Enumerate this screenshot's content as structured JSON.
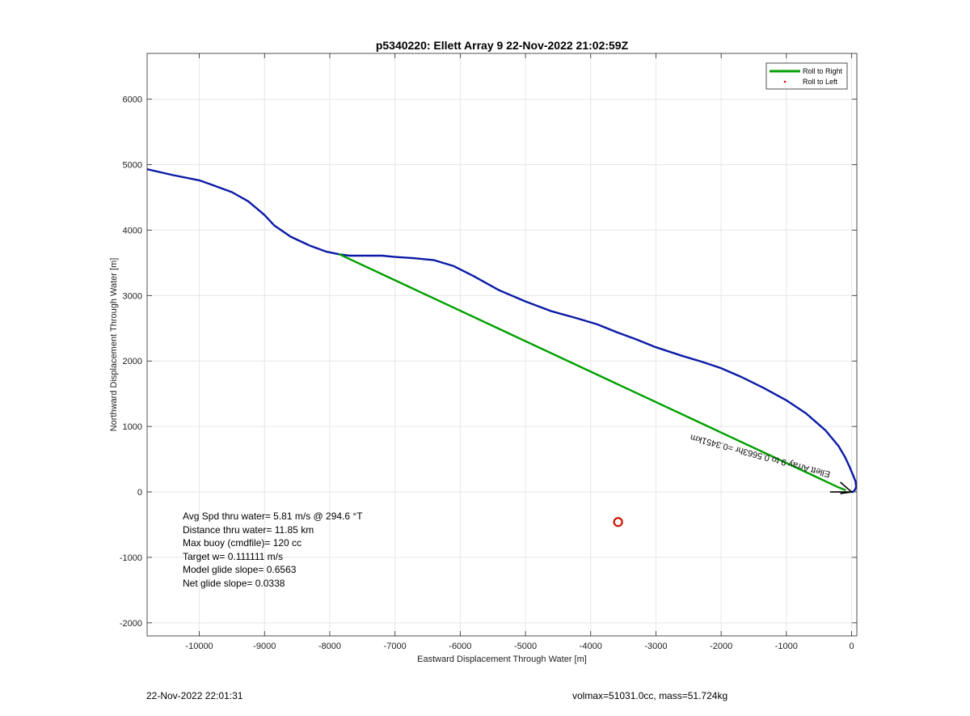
{
  "chart_data": {
    "type": "line",
    "title": "p5340220: Ellett Array 9 22-Nov-2022 21:02:59Z",
    "xlabel": "Eastward Displacement Through Water [m]",
    "ylabel": "Northward Displacement Through Water [m]",
    "xlim": [
      -10800,
      80
    ],
    "ylim": [
      -2200,
      6700
    ],
    "x_ticks": [
      -10000,
      -9000,
      -8000,
      -7000,
      -6000,
      -5000,
      -4000,
      -3000,
      -2000,
      -1000,
      0
    ],
    "y_ticks": [
      -2000,
      -1000,
      0,
      1000,
      2000,
      3000,
      4000,
      5000,
      6000
    ],
    "grid": true,
    "legend_position": "top-right",
    "legend": [
      {
        "label": "Roll to Right",
        "color": "#00a000",
        "style": "line"
      },
      {
        "label": "Roll to Left",
        "color": "#ff0000",
        "style": "dot"
      }
    ],
    "series": [
      {
        "color": "#0a1aa6",
        "x": [
          -10800,
          -10400,
          -10000,
          -9800,
          -9500,
          -9250,
          -9000,
          -8850,
          -8600,
          -8300,
          -8050,
          -7850,
          -7700,
          -7600,
          -7500,
          -7200,
          -7000,
          -6700,
          -6400,
          -6100,
          -5800,
          -5400,
          -5000,
          -4600,
          -4200,
          -3900,
          -3600,
          -3300,
          -3000,
          -2600,
          -2300,
          -2000,
          -1700,
          -1350,
          -1000,
          -700,
          -400,
          -200,
          -100,
          -30,
          20,
          60,
          70,
          50,
          20,
          0
        ],
        "y": [
          4930,
          4840,
          4760,
          4690,
          4580,
          4440,
          4230,
          4070,
          3900,
          3760,
          3670,
          3630,
          3610,
          3610,
          3610,
          3610,
          3590,
          3570,
          3540,
          3450,
          3300,
          3080,
          2910,
          2760,
          2650,
          2560,
          2440,
          2330,
          2210,
          2080,
          1990,
          1890,
          1760,
          1590,
          1400,
          1200,
          940,
          700,
          530,
          380,
          260,
          160,
          80,
          30,
          0,
          0
        ]
      },
      {
        "color": "#00a000",
        "x": [
          -7850,
          -200,
          -100
        ],
        "y": [
          3630,
          70,
          30
        ]
      }
    ],
    "markers": [
      {
        "x": -3580,
        "y": -460,
        "color": "#cc1100",
        "shape": "circle"
      }
    ],
    "arrow": {
      "from_x": -330,
      "from_y": 0,
      "to_x": 0,
      "to_y": 0,
      "label": "Ellett Array 9 to 0.5663hr =0.3451km"
    }
  },
  "stats": {
    "avg_speed": "Avg Spd thru water=  5.81 m/s @ 294.6 °T",
    "distance": "Distance thru water= 11.85 km",
    "max_buoy": "Max buoy (cmdfile)= 120 cc",
    "target_w": "Target w= 0.111111 m/s",
    "model_glide": "Model glide slope= 0.6563",
    "net_glide": "Net glide slope= 0.0338"
  },
  "footer": {
    "date": "22-Nov-2022 22:01:31",
    "volmax": "volmax=51031.0cc, mass=51.724kg"
  }
}
